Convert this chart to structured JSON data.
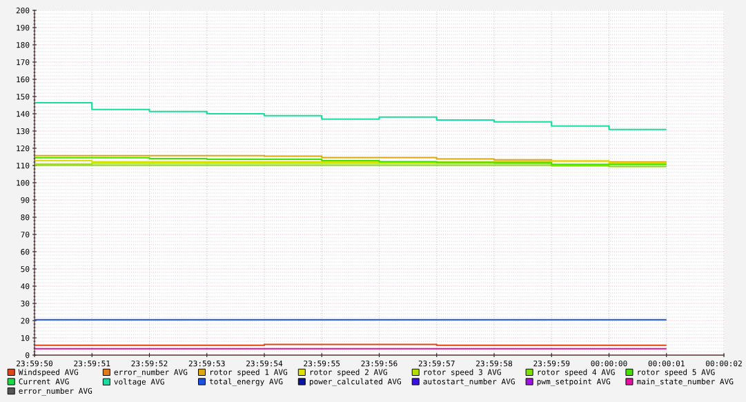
{
  "chart_data": {
    "type": "step",
    "categories": [
      "23:59:50",
      "23:59:51",
      "23:59:52",
      "23:59:53",
      "23:59:54",
      "23:59:55",
      "23:59:56",
      "23:59:57",
      "23:59:58",
      "23:59:59",
      "00:00:00",
      "00:00:01",
      "00:00:02"
    ],
    "ylim": [
      0,
      200
    ],
    "yticks": [
      0,
      10,
      20,
      30,
      40,
      50,
      60,
      70,
      80,
      90,
      100,
      110,
      120,
      130,
      140,
      150,
      160,
      170,
      180,
      190,
      200,
      {
        "value": 2,
        "label": null
      },
      {
        "value": 4,
        "label": null
      },
      {
        "value": 6,
        "label": null
      },
      {
        "value": 8,
        "label": null
      },
      {
        "value": 12,
        "label": null
      },
      {
        "value": 14,
        "label": null
      },
      {
        "value": 16,
        "label": null
      },
      {
        "value": 18,
        "label": null
      },
      {
        "value": 22,
        "label": null
      },
      {
        "value": 24,
        "label": null
      },
      {
        "value": 26,
        "label": null
      },
      {
        "value": 28,
        "label": null
      },
      {
        "value": 32,
        "label": null
      },
      {
        "value": 34,
        "label": null
      },
      {
        "value": 36,
        "label": null
      },
      {
        "value": 38,
        "label": null
      },
      {
        "value": 42,
        "label": null
      },
      {
        "value": 44,
        "label": null
      },
      {
        "value": 46,
        "label": null
      },
      {
        "value": 48,
        "label": null
      },
      {
        "value": 52,
        "label": null
      },
      {
        "value": 54,
        "label": null
      },
      {
        "value": 56,
        "label": null
      },
      {
        "value": 58,
        "label": null
      },
      {
        "value": 62,
        "label": null
      },
      {
        "value": 64,
        "label": null
      },
      {
        "value": 66,
        "label": null
      },
      {
        "value": 68,
        "label": null
      },
      {
        "value": 72,
        "label": null
      },
      {
        "value": 74,
        "label": null
      },
      {
        "value": 76,
        "label": null
      },
      {
        "value": 78,
        "label": null
      },
      {
        "value": 82,
        "label": null
      },
      {
        "value": 84,
        "label": null
      },
      {
        "value": 86,
        "label": null
      },
      {
        "value": 88,
        "label": null
      },
      {
        "value": 92,
        "label": null
      },
      {
        "value": 94,
        "label": null
      },
      {
        "value": 96,
        "label": null
      },
      {
        "value": 98,
        "label": null
      },
      {
        "value": 102,
        "label": null
      },
      {
        "value": 104,
        "label": null
      },
      {
        "value": 106,
        "label": null
      },
      {
        "value": 108,
        "label": null
      },
      {
        "value": 112,
        "label": null
      },
      {
        "value": 114,
        "label": null
      },
      {
        "value": 116,
        "label": null
      },
      {
        "value": 118,
        "label": null
      },
      {
        "value": 122,
        "label": null
      },
      {
        "value": 124,
        "label": null
      },
      {
        "value": 126,
        "label": null
      },
      {
        "value": 128,
        "label": null
      },
      {
        "value": 132,
        "label": null
      },
      {
        "value": 134,
        "label": null
      },
      {
        "value": 136,
        "label": null
      },
      {
        "value": 138,
        "label": null
      },
      {
        "value": 142,
        "label": null
      },
      {
        "value": 144,
        "label": null
      },
      {
        "value": 146,
        "label": null
      },
      {
        "value": 148,
        "label": null
      },
      {
        "value": 152,
        "label": null
      },
      {
        "value": 154,
        "label": null
      },
      {
        "value": 156,
        "label": null
      },
      {
        "value": 158,
        "label": null
      },
      {
        "value": 162,
        "label": null
      },
      {
        "value": 164,
        "label": null
      },
      {
        "value": 166,
        "label": null
      },
      {
        "value": 168,
        "label": null
      },
      {
        "value": 172,
        "label": null
      },
      {
        "value": 174,
        "label": null
      },
      {
        "value": 176,
        "label": null
      },
      {
        "value": 178,
        "label": null
      },
      {
        "value": 182,
        "label": null
      },
      {
        "value": 184,
        "label": null
      },
      {
        "value": 186,
        "label": null
      },
      {
        "value": 188,
        "label": null
      },
      {
        "value": 192,
        "label": null
      },
      {
        "value": 194,
        "label": null
      },
      {
        "value": 196,
        "label": null
      },
      {
        "value": 198,
        "label": null
      }
    ],
    "grid": true,
    "legend": "bottom",
    "series": [
      {
        "name": "Windspeed AVG",
        "color": "#e0451a",
        "values": [
          5.7,
          5.7,
          5.7,
          5.7,
          6.2,
          6.2,
          6.2,
          5.7,
          5.7,
          5.7,
          5.7,
          5.7,
          null
        ]
      },
      {
        "name": "error_number AVG",
        "color": "#e07a1a",
        "values": [
          null,
          null,
          null,
          null,
          null,
          null,
          null,
          null,
          null,
          null,
          null,
          null,
          null
        ]
      },
      {
        "name": "rotor speed 1 AVG",
        "color": "#dca812",
        "values": [
          115.7,
          115.7,
          115.7,
          115.7,
          115.4,
          114.6,
          114.6,
          113.8,
          113.3,
          112.6,
          112.1,
          112.1,
          null
        ]
      },
      {
        "name": "rotor speed 2 AVG",
        "color": "#e0e000",
        "values": [
          112.8,
          112.2,
          112.2,
          112.2,
          112.2,
          112.2,
          112.2,
          112.2,
          112.4,
          112.6,
          111.4,
          111.4,
          null
        ]
      },
      {
        "name": "rotor speed 3 AVG",
        "color": "#b4e000",
        "values": [
          110.9,
          111.4,
          111.4,
          111.4,
          111.4,
          111.4,
          111.4,
          111.4,
          111.2,
          110.6,
          111.0,
          111.0,
          null
        ]
      },
      {
        "name": "rotor speed 4 AVG",
        "color": "#7de000",
        "values": [
          110.2,
          110.2,
          110.2,
          110.2,
          110.2,
          110.2,
          110.2,
          110.2,
          110.2,
          109.8,
          109.4,
          109.4,
          null
        ]
      },
      {
        "name": "rotor speed 5 AVG",
        "color": "#44e000",
        "values": [
          114.5,
          114.5,
          114.0,
          113.6,
          113.6,
          112.8,
          112.2,
          111.8,
          111.7,
          110.6,
          110.6,
          110.6,
          null
        ]
      },
      {
        "name": "Current AVG",
        "color": "#22d84a",
        "values": [
          null,
          null,
          null,
          null,
          null,
          null,
          null,
          null,
          null,
          null,
          null,
          null,
          null
        ]
      },
      {
        "name": "voltage AVG",
        "color": "#1adba0",
        "values": [
          146.4,
          142.5,
          141.3,
          140.0,
          138.9,
          136.9,
          138.1,
          136.4,
          135.3,
          132.9,
          130.9,
          130.9,
          null
        ]
      },
      {
        "name": "total_energy AVG",
        "color": "#1a4fe0",
        "values": [
          20.5,
          20.5,
          20.5,
          20.5,
          20.5,
          20.5,
          20.5,
          20.5,
          20.5,
          20.5,
          20.5,
          20.5,
          null
        ]
      },
      {
        "name": "power_calculated AVG",
        "color": "#0a169e",
        "values": [
          null,
          null,
          null,
          null,
          null,
          null,
          null,
          null,
          null,
          null,
          null,
          null,
          null
        ]
      },
      {
        "name": "autostart_number AVG",
        "color": "#3a10e0",
        "values": [
          null,
          null,
          null,
          null,
          null,
          null,
          null,
          null,
          null,
          null,
          null,
          null,
          null
        ]
      },
      {
        "name": "pwm_setpoint AVG",
        "color": "#a010e0",
        "values": [
          null,
          null,
          null,
          null,
          null,
          null,
          null,
          null,
          null,
          null,
          null,
          null,
          null
        ]
      },
      {
        "name": "main_state_number AVG",
        "color": "#e010a0",
        "values": [
          3.7,
          3.7,
          3.7,
          3.7,
          3.7,
          3.7,
          3.7,
          3.7,
          3.7,
          3.7,
          3.7,
          3.7,
          null
        ]
      },
      {
        "name": "error_number AVG",
        "color": "#555555",
        "values": [
          null,
          null,
          null,
          null,
          null,
          null,
          null,
          null,
          null,
          null,
          null,
          null,
          null
        ]
      }
    ]
  }
}
